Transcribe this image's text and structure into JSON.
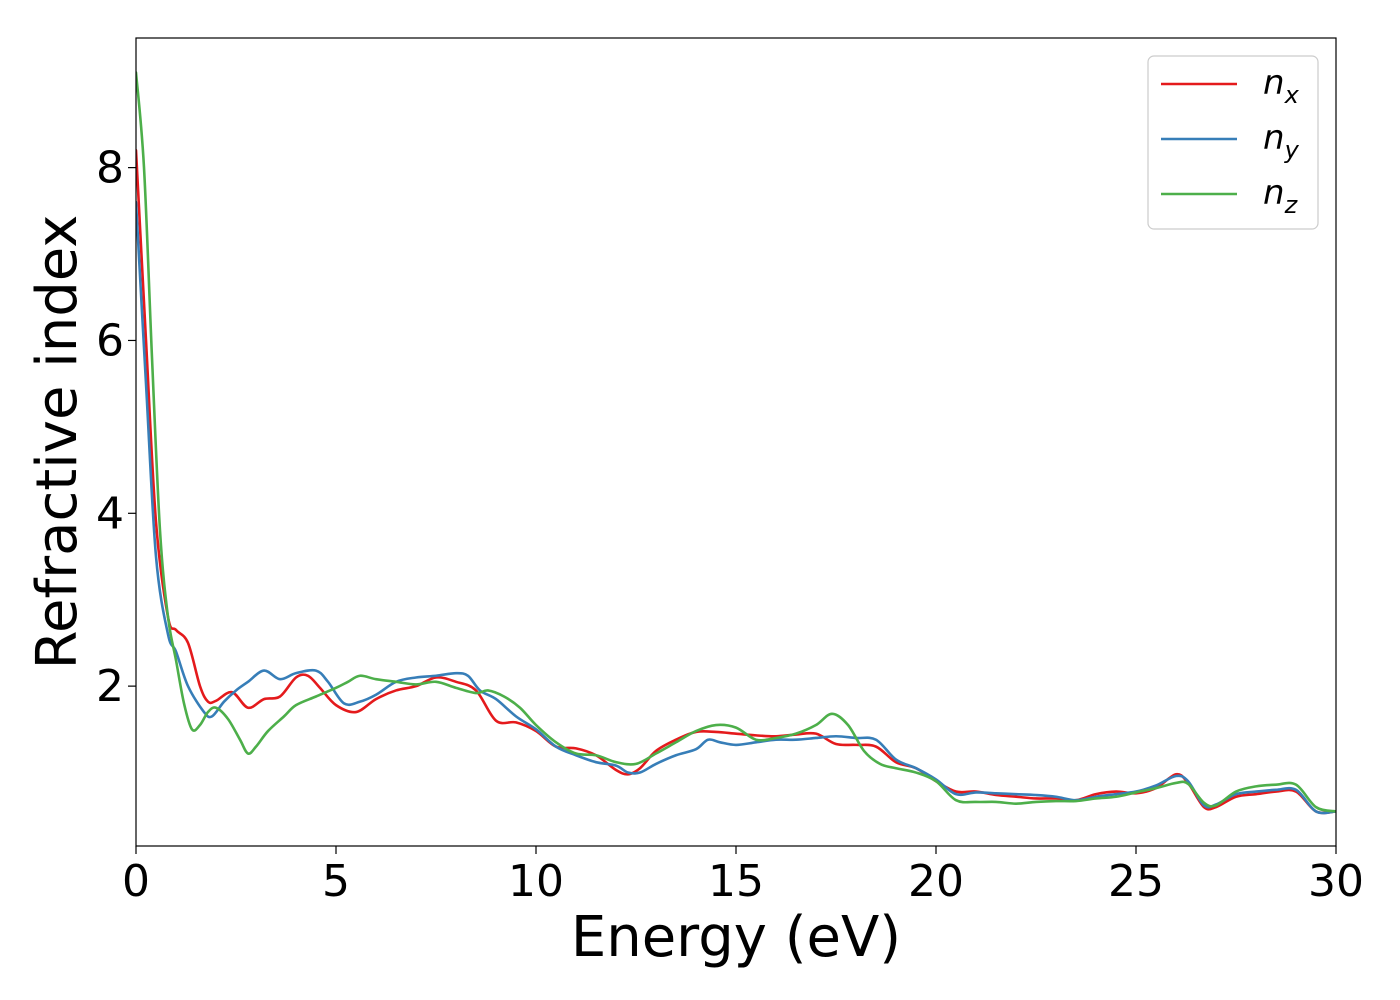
{
  "chart_data": {
    "type": "line",
    "title": "",
    "xlabel": "Energy (eV)",
    "ylabel": "Refractive index",
    "xlim": [
      0,
      30
    ],
    "ylim": [
      0.15,
      9.5
    ],
    "xticks": [
      0,
      5,
      10,
      15,
      20,
      25,
      30
    ],
    "yticks": [
      2,
      4,
      6,
      8
    ],
    "grid": false,
    "legend_position": "top-right",
    "series": [
      {
        "name": "n",
        "subscript": "x",
        "color": "#e41a1c",
        "x": [
          0,
          0.25,
          0.5,
          0.8,
          1.0,
          1.3,
          1.6,
          1.8,
          2.0,
          2.4,
          2.8,
          3.2,
          3.6,
          4.0,
          4.3,
          4.6,
          5.0,
          5.5,
          6.0,
          6.5,
          7.0,
          7.5,
          8.0,
          8.5,
          9.0,
          9.5,
          10.0,
          10.5,
          11.0,
          11.5,
          12.0,
          12.3,
          12.6,
          13.0,
          13.5,
          14.0,
          14.5,
          15.0,
          15.5,
          16.0,
          16.5,
          17.0,
          17.5,
          18.0,
          18.5,
          19.0,
          19.5,
          20.0,
          20.5,
          21.0,
          21.5,
          22.0,
          22.5,
          23.0,
          23.5,
          24.0,
          24.5,
          25.0,
          25.5,
          26.0,
          26.3,
          26.7,
          27.0,
          27.5,
          28.0,
          28.5,
          29.0,
          29.5,
          30.0
        ],
        "y": [
          8.2,
          6.0,
          3.9,
          2.8,
          2.65,
          2.5,
          2.0,
          1.82,
          1.83,
          1.93,
          1.75,
          1.85,
          1.88,
          2.1,
          2.12,
          1.98,
          1.78,
          1.7,
          1.85,
          1.95,
          2.0,
          2.1,
          2.05,
          1.95,
          1.6,
          1.58,
          1.48,
          1.3,
          1.28,
          1.2,
          1.03,
          0.98,
          1.05,
          1.25,
          1.38,
          1.47,
          1.47,
          1.45,
          1.43,
          1.42,
          1.44,
          1.45,
          1.33,
          1.32,
          1.3,
          1.12,
          1.05,
          0.9,
          0.78,
          0.78,
          0.74,
          0.72,
          0.7,
          0.7,
          0.68,
          0.75,
          0.78,
          0.76,
          0.82,
          0.98,
          0.88,
          0.6,
          0.6,
          0.72,
          0.75,
          0.78,
          0.78,
          0.55,
          0.55
        ]
      },
      {
        "name": "n",
        "subscript": "y",
        "color": "#377eb8",
        "x": [
          0,
          0.25,
          0.5,
          0.8,
          1.0,
          1.3,
          1.7,
          1.9,
          2.2,
          2.5,
          2.8,
          3.2,
          3.6,
          4.0,
          4.5,
          4.8,
          5.2,
          5.6,
          6.0,
          6.5,
          7.0,
          7.5,
          8.0,
          8.3,
          8.6,
          9.0,
          9.5,
          10.0,
          10.5,
          11.0,
          11.5,
          12.0,
          12.3,
          12.6,
          13.0,
          13.5,
          14.0,
          14.3,
          14.6,
          15.0,
          15.5,
          16.0,
          16.5,
          17.0,
          17.5,
          18.0,
          18.5,
          19.0,
          19.5,
          20.0,
          20.5,
          21.0,
          21.5,
          22.0,
          22.5,
          23.0,
          23.5,
          24.0,
          24.5,
          25.0,
          25.5,
          26.0,
          26.3,
          26.7,
          27.0,
          27.5,
          28.0,
          28.5,
          29.0,
          29.5,
          30.0
        ],
        "y": [
          7.6,
          5.5,
          3.5,
          2.6,
          2.4,
          2.0,
          1.7,
          1.65,
          1.82,
          1.95,
          2.05,
          2.18,
          2.08,
          2.15,
          2.18,
          2.05,
          1.8,
          1.82,
          1.9,
          2.05,
          2.1,
          2.12,
          2.15,
          2.12,
          1.95,
          1.85,
          1.65,
          1.5,
          1.3,
          1.2,
          1.12,
          1.08,
          1.0,
          1.0,
          1.1,
          1.2,
          1.27,
          1.38,
          1.35,
          1.32,
          1.35,
          1.38,
          1.38,
          1.4,
          1.42,
          1.4,
          1.38,
          1.15,
          1.05,
          0.92,
          0.75,
          0.77,
          0.76,
          0.75,
          0.74,
          0.72,
          0.68,
          0.72,
          0.75,
          0.78,
          0.85,
          0.96,
          0.9,
          0.62,
          0.63,
          0.75,
          0.78,
          0.8,
          0.8,
          0.55,
          0.55
        ]
      },
      {
        "name": "n",
        "subscript": "z",
        "color": "#4daf4a",
        "x": [
          0,
          0.2,
          0.4,
          0.6,
          0.8,
          1.0,
          1.2,
          1.4,
          1.6,
          1.8,
          2.0,
          2.3,
          2.6,
          2.8,
          3.0,
          3.3,
          3.7,
          4.0,
          4.5,
          5.0,
          5.3,
          5.6,
          6.0,
          6.5,
          7.0,
          7.5,
          8.0,
          8.5,
          8.8,
          9.2,
          9.6,
          10.0,
          10.5,
          11.0,
          11.5,
          12.0,
          12.5,
          13.0,
          13.5,
          14.0,
          14.5,
          15.0,
          15.5,
          16.0,
          16.5,
          17.0,
          17.4,
          17.8,
          18.2,
          18.6,
          19.0,
          19.5,
          20.0,
          20.5,
          21.0,
          21.5,
          22.0,
          22.5,
          23.0,
          23.5,
          24.0,
          24.5,
          25.0,
          25.5,
          26.0,
          26.3,
          26.7,
          27.0,
          27.5,
          28.0,
          28.5,
          29.0,
          29.5,
          30.0
        ],
        "y": [
          9.1,
          8.0,
          5.8,
          3.8,
          2.8,
          2.3,
          1.8,
          1.5,
          1.55,
          1.7,
          1.75,
          1.62,
          1.38,
          1.22,
          1.3,
          1.48,
          1.65,
          1.78,
          1.88,
          1.98,
          2.05,
          2.12,
          2.08,
          2.05,
          2.02,
          2.05,
          1.98,
          1.92,
          1.95,
          1.88,
          1.75,
          1.55,
          1.35,
          1.22,
          1.2,
          1.12,
          1.1,
          1.22,
          1.35,
          1.48,
          1.55,
          1.52,
          1.38,
          1.4,
          1.45,
          1.55,
          1.68,
          1.55,
          1.25,
          1.1,
          1.05,
          1.0,
          0.9,
          0.68,
          0.66,
          0.66,
          0.64,
          0.66,
          0.67,
          0.67,
          0.7,
          0.72,
          0.77,
          0.82,
          0.88,
          0.87,
          0.65,
          0.62,
          0.78,
          0.84,
          0.86,
          0.86,
          0.6,
          0.55
        ]
      }
    ]
  }
}
